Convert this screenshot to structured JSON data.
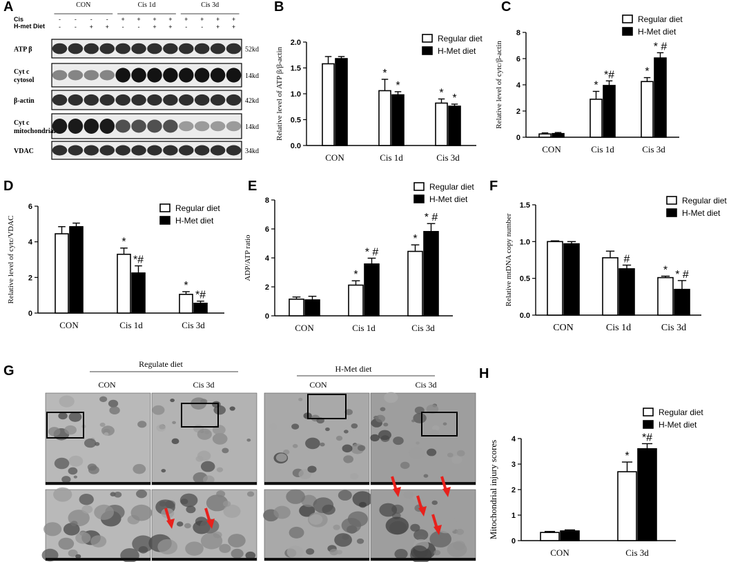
{
  "panel_labels": [
    "A",
    "B",
    "C",
    "D",
    "E",
    "F",
    "G",
    "H"
  ],
  "colors": {
    "regular": "#ffffff",
    "hmet": "#000000",
    "stroke": "#000000",
    "arrow": "#e8211c"
  },
  "western_blot": {
    "groups": [
      "CON",
      "Cis 1d",
      "Cis 3d"
    ],
    "row_labels": [
      "Cis",
      "H-met Diet"
    ],
    "cis_signs": [
      "-",
      "-",
      "-",
      "-",
      "+",
      "+",
      "+",
      "+",
      "+",
      "+",
      "+",
      "+"
    ],
    "hmet_signs": [
      "-",
      "-",
      "+",
      "+",
      "-",
      "-",
      "+",
      "+",
      "-",
      "-",
      "+",
      "+"
    ],
    "blots": [
      {
        "label": "ATP β",
        "size": "52kd",
        "profile": "uniform"
      },
      {
        "label": "Cyt c\ncytosol",
        "size": "14kd",
        "profile": "increase"
      },
      {
        "label": "β-actin",
        "size": "42kd",
        "profile": "uniform"
      },
      {
        "label": "Cyt c\nmitochondrial",
        "size": "14kd",
        "profile": "decrease"
      },
      {
        "label": "VDAC",
        "size": "34kd",
        "profile": "uniform"
      }
    ]
  },
  "em": {
    "groups": [
      "Regulate diet",
      "H-Met diet"
    ],
    "columns": [
      "CON",
      "Cis 3d",
      "CON",
      "Cis 3d"
    ]
  },
  "chart_data": [
    {
      "id": "B",
      "type": "bar",
      "categories": [
        "CON",
        "Cis 1d",
        "Cis 3d"
      ],
      "series": [
        {
          "name": "Regular diet",
          "values": [
            1.58,
            1.06,
            0.82
          ],
          "errors": [
            0.14,
            0.22,
            0.08
          ],
          "marks": [
            "",
            "*",
            "*"
          ]
        },
        {
          "name": "H-Met diet",
          "values": [
            1.68,
            0.98,
            0.76
          ],
          "errors": [
            0.04,
            0.06,
            0.04
          ],
          "marks": [
            "",
            "*",
            "*"
          ]
        }
      ],
      "ylabel": "Relative level of ATP β/β-actin",
      "ylim": [
        0,
        2.0
      ],
      "yticks": [
        "0.0",
        "0.5",
        "1.0",
        "1.5",
        "2.0"
      ],
      "legend": "top-right"
    },
    {
      "id": "C",
      "type": "bar",
      "categories": [
        "CON",
        "Cis 1d",
        "Cis 3d"
      ],
      "series": [
        {
          "name": "Regular diet",
          "values": [
            0.25,
            2.9,
            4.25
          ],
          "errors": [
            0.08,
            0.6,
            0.3
          ],
          "marks": [
            "",
            "*",
            "*"
          ]
        },
        {
          "name": "H-Met diet",
          "values": [
            0.28,
            3.95,
            6.05
          ],
          "errors": [
            0.08,
            0.35,
            0.4
          ],
          "marks": [
            "",
            "*#",
            "* #"
          ]
        }
      ],
      "ylabel": "Relative level of cytc/β-actin",
      "ylim": [
        0,
        8
      ],
      "yticks": [
        "0",
        "2",
        "4",
        "6",
        "8"
      ],
      "legend": "top-right"
    },
    {
      "id": "D",
      "type": "bar",
      "categories": [
        "CON",
        "Cis 1d",
        "Cis 3d"
      ],
      "series": [
        {
          "name": "Regular diet",
          "values": [
            4.45,
            3.3,
            1.05
          ],
          "errors": [
            0.4,
            0.35,
            0.15
          ],
          "marks": [
            "",
            "*",
            "*"
          ]
        },
        {
          "name": "H-Met diet",
          "values": [
            4.85,
            2.25,
            0.55
          ],
          "errors": [
            0.2,
            0.4,
            0.12
          ],
          "marks": [
            "",
            "*#",
            "*#"
          ]
        }
      ],
      "ylabel": "Relative level of cytc/VDAC",
      "ylim": [
        0,
        6
      ],
      "yticks": [
        "0",
        "2",
        "4",
        "6"
      ],
      "legend": "top-right"
    },
    {
      "id": "E",
      "type": "bar",
      "categories": [
        "CON",
        "Cis 1d",
        "Cis 3d"
      ],
      "series": [
        {
          "name": "Regular diet",
          "values": [
            1.15,
            2.12,
            4.45
          ],
          "errors": [
            0.15,
            0.3,
            0.45
          ],
          "marks": [
            "",
            "*",
            "*"
          ]
        },
        {
          "name": "H-Met diet",
          "values": [
            1.1,
            3.58,
            5.82
          ],
          "errors": [
            0.25,
            0.4,
            0.55
          ],
          "marks": [
            "",
            "* #",
            "* #"
          ]
        }
      ],
      "ylabel": "ADP/ATP ratio",
      "ylim": [
        0,
        8
      ],
      "yticks": [
        "0",
        "2",
        "4",
        "6",
        "8"
      ],
      "legend": "top-right"
    },
    {
      "id": "F",
      "type": "bar",
      "categories": [
        "CON",
        "Cis 1d",
        "Cis 3d"
      ],
      "series": [
        {
          "name": "Regular diet",
          "values": [
            1.0,
            0.78,
            0.51
          ],
          "errors": [
            0.01,
            0.09,
            0.02
          ],
          "marks": [
            "",
            "",
            "*"
          ]
        },
        {
          "name": "H-Met diet",
          "values": [
            0.97,
            0.63,
            0.35
          ],
          "errors": [
            0.03,
            0.05,
            0.12
          ],
          "marks": [
            "",
            "#",
            "* #"
          ]
        }
      ],
      "ylabel": "Relative mtDNA copy number",
      "ylim": [
        0,
        1.5
      ],
      "yticks": [
        "0.0",
        "0.5",
        "1.0",
        "1.5"
      ],
      "legend": "top-right"
    },
    {
      "id": "H",
      "type": "bar",
      "categories": [
        "CON",
        "Cis 3d"
      ],
      "series": [
        {
          "name": "Regular diet",
          "values": [
            0.32,
            2.7
          ],
          "errors": [
            0.04,
            0.38
          ],
          "marks": [
            "",
            "*"
          ]
        },
        {
          "name": "H-Met diet",
          "values": [
            0.38,
            3.6
          ],
          "errors": [
            0.04,
            0.2
          ],
          "marks": [
            "",
            "*#"
          ]
        }
      ],
      "ylabel": "Mitochondrial injury scores",
      "ylim": [
        0,
        4
      ],
      "yticks": [
        "0",
        "1",
        "2",
        "3",
        "4"
      ],
      "legend": "top-right"
    }
  ]
}
